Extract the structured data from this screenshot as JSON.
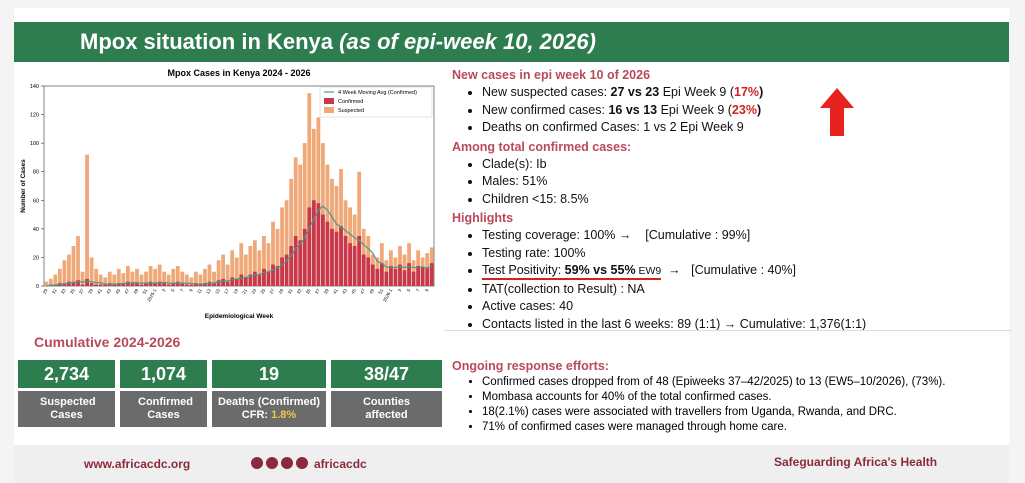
{
  "header": {
    "title": "Mpox situation in Kenya",
    "subtitle": "(as of epi-week 10, 2026)"
  },
  "chart_data": {
    "type": "bar",
    "title": "Mpox Cases in Kenya 2024 - 2026",
    "xlabel": "Epidemiological Week",
    "ylabel": "Number of Cases",
    "categories": [
      "29",
      null,
      "31",
      null,
      "33",
      null,
      "35",
      null,
      "37",
      null,
      "39",
      null,
      "41",
      null,
      "43",
      null,
      "45",
      null,
      "47",
      null,
      "49",
      null,
      "51",
      null,
      "2025-1",
      null,
      "3",
      null,
      "5",
      null,
      "7",
      null,
      "9",
      null,
      "11",
      null,
      "13",
      null,
      "15",
      null,
      "17",
      null,
      "19",
      null,
      "21",
      null,
      "23",
      null,
      "25",
      null,
      "27",
      null,
      "29",
      null,
      "31",
      null,
      "33",
      null,
      "35",
      null,
      "37",
      null,
      "39",
      null,
      "41",
      null,
      "43",
      null,
      "45",
      null,
      "47",
      null,
      "49",
      null,
      "51",
      null,
      "2026-1",
      null,
      "3",
      null,
      "5",
      null,
      "7",
      null,
      "9",
      null
    ],
    "series": [
      {
        "name": "Suspected",
        "color": "#f0a878",
        "values": [
          3,
          5,
          8,
          12,
          18,
          22,
          28,
          35,
          10,
          92,
          20,
          12,
          8,
          6,
          10,
          8,
          12,
          9,
          14,
          10,
          12,
          8,
          10,
          14,
          12,
          15,
          10,
          8,
          12,
          14,
          10,
          8,
          6,
          10,
          8,
          12,
          15,
          10,
          18,
          22,
          15,
          25,
          20,
          30,
          22,
          28,
          32,
          25,
          35,
          30,
          45,
          40,
          55,
          60,
          75,
          90,
          85,
          100,
          135,
          110,
          118,
          100,
          85,
          75,
          70,
          82,
          60,
          55,
          50,
          80,
          40,
          35,
          22,
          20,
          30,
          18,
          25,
          20,
          28,
          22,
          30,
          18,
          25,
          20,
          23,
          27
        ]
      },
      {
        "name": "Confirmed",
        "color": "#c8384a",
        "values": [
          0,
          1,
          1,
          2,
          2,
          3,
          3,
          4,
          1,
          5,
          2,
          1,
          1,
          1,
          2,
          1,
          2,
          2,
          3,
          2,
          2,
          1,
          2,
          3,
          2,
          3,
          2,
          1,
          2,
          3,
          2,
          1,
          1,
          2,
          1,
          2,
          3,
          2,
          4,
          5,
          3,
          6,
          5,
          8,
          6,
          8,
          10,
          8,
          12,
          10,
          15,
          14,
          20,
          22,
          28,
          35,
          32,
          40,
          55,
          60,
          58,
          50,
          45,
          40,
          38,
          42,
          35,
          30,
          28,
          35,
          22,
          20,
          15,
          12,
          16,
          10,
          14,
          12,
          15,
          11,
          16,
          10,
          14,
          13,
          13,
          16
        ]
      },
      {
        "name": "4 Week Moving Avg (Confirmed)",
        "color": "#4a9a8a",
        "values": [
          0,
          0.5,
          0.7,
          1,
          1.5,
          2,
          2.5,
          3,
          2.8,
          3.3,
          3,
          2.3,
          2.3,
          1.3,
          1.3,
          1.3,
          1.5,
          1.8,
          2,
          2.3,
          2.3,
          2,
          2,
          2,
          2,
          2.3,
          2.5,
          2,
          2,
          2,
          2,
          2,
          1.8,
          1.5,
          1.3,
          1.5,
          2,
          2,
          2.8,
          3.5,
          3.5,
          4.5,
          4.8,
          5.5,
          6,
          6.8,
          7.8,
          8,
          9.5,
          10,
          11.3,
          12.8,
          14.8,
          17.8,
          21,
          26.3,
          29.3,
          33.8,
          40.5,
          46.8,
          53.3,
          55.8,
          53.3,
          48.3,
          43.3,
          41.3,
          38.8,
          36.3,
          33.8,
          32,
          28.8,
          26.3,
          23,
          17.3,
          15.8,
          13.3,
          13,
          13,
          13.3,
          13,
          13.5,
          13,
          12.8,
          13.3,
          12.5,
          14
        ]
      }
    ],
    "ylim": [
      0,
      140
    ],
    "yticks": [
      0,
      20,
      40,
      60,
      80,
      100,
      120,
      140
    ],
    "legend": "upper-right"
  },
  "new_cases": {
    "heading": "New cases in epi week 10 of 2026",
    "items": [
      [
        "New suspected cases: ",
        "27 vs 23",
        " Epi Week 9 (",
        "17%",
        ")"
      ],
      [
        "New confirmed cases: ",
        "16 vs 13",
        " Epi Week 9 (",
        "23%",
        ")"
      ],
      "Deaths on confirmed Cases: 1 vs 2 Epi Week 9"
    ]
  },
  "total": {
    "heading": "Among total confirmed cases:",
    "items": [
      "Clade(s): Ib",
      "Males: 51%",
      "Children <15: 8.5%"
    ]
  },
  "highlights": {
    "heading": "Highlights",
    "items": [
      "Testing coverage: 100% →    [Cumulative : 99%]",
      "Testing rate: 100%",
      [
        "Test Positivity: ",
        "59% vs 55%",
        " EW9",
        "  →   [Cumulative : 40%]"
      ],
      "TAT(collection to Result) : NA",
      "Active cases: 40",
      "Contacts listed in the last 6 weeks: 89 (1:1) → Cumulative: 1,376(1:1)"
    ]
  },
  "response": {
    "heading": "Ongoing response efforts:",
    "items": [
      "Confirmed cases dropped from of 48 (Epiweeks 37–42/2025) to 13 (EW5–10/2026), (73%).",
      "Mombasa accounts for 40% of the total confirmed cases.",
      "18(2.1%) cases were associated with travellers from Uganda, Rwanda, and DRC.",
      "71% of confirmed cases were managed through home care."
    ]
  },
  "cumulative": {
    "heading": "Cumulative 2024-2026",
    "cards": [
      {
        "value": "2,734",
        "label": "Suspected Cases"
      },
      {
        "value": "1,074",
        "label": "Confirmed Cases"
      },
      {
        "value": "19",
        "label": "Deaths (Confirmed)",
        "sub": "CFR: ",
        "subvalue": "1.8%"
      },
      {
        "value": "38/47",
        "label": "Counties affected"
      }
    ]
  },
  "footer": {
    "website": "www.africacdc.org",
    "social": "africacdc",
    "tagline": "Safeguarding Africa's Health"
  }
}
